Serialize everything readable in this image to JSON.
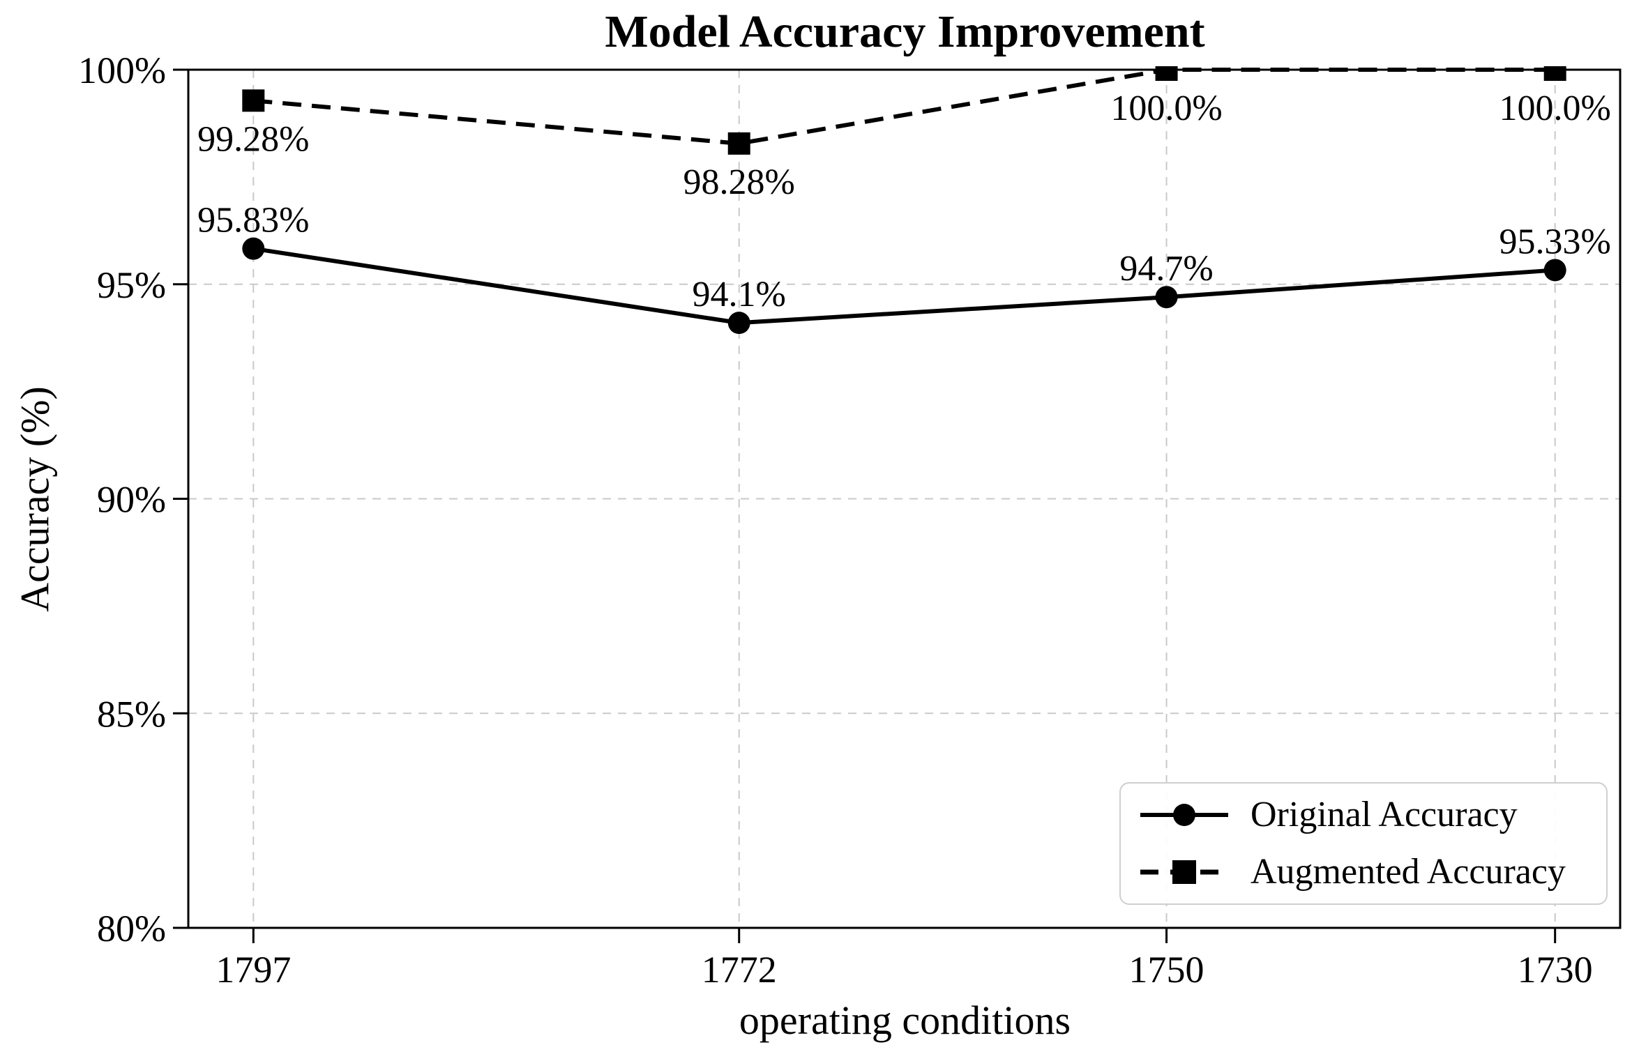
{
  "chart_data": {
    "type": "line",
    "title": "Model Accuracy Improvement",
    "xlabel": "operating conditions",
    "ylabel": "Accuracy (%)",
    "x": [
      1797,
      1772,
      1750,
      1730
    ],
    "x_tick_labels": [
      "1797",
      "1772",
      "1750",
      "1730"
    ],
    "x_axis_inverted": true,
    "ylim": [
      80,
      100
    ],
    "y_ticks": [
      80,
      85,
      90,
      95,
      100
    ],
    "y_tick_labels": [
      "80%",
      "85%",
      "90%",
      "95%",
      "100%"
    ],
    "grid": "dashed",
    "legend_position": "lower right",
    "series": [
      {
        "name": "Original Accuracy",
        "marker": "circle",
        "line_style": "solid",
        "values": [
          95.83,
          94.1,
          94.7,
          95.33
        ],
        "point_labels": [
          "95.83%",
          "94.1%",
          "94.7%",
          "95.33%"
        ],
        "label_placement": "above"
      },
      {
        "name": "Augmented Accuracy",
        "marker": "square",
        "line_style": "dashed",
        "values": [
          99.28,
          98.28,
          100.0,
          100.0
        ],
        "point_labels": [
          "99.28%",
          "98.28%",
          "100.0%",
          "100.0%"
        ],
        "label_placement": "below"
      }
    ],
    "colors": {
      "series": "#000000",
      "grid": "#c9c9c9",
      "axis": "#000000",
      "text": "#000000",
      "legend_border": "#cfcfcf",
      "background": "#ffffff"
    }
  }
}
